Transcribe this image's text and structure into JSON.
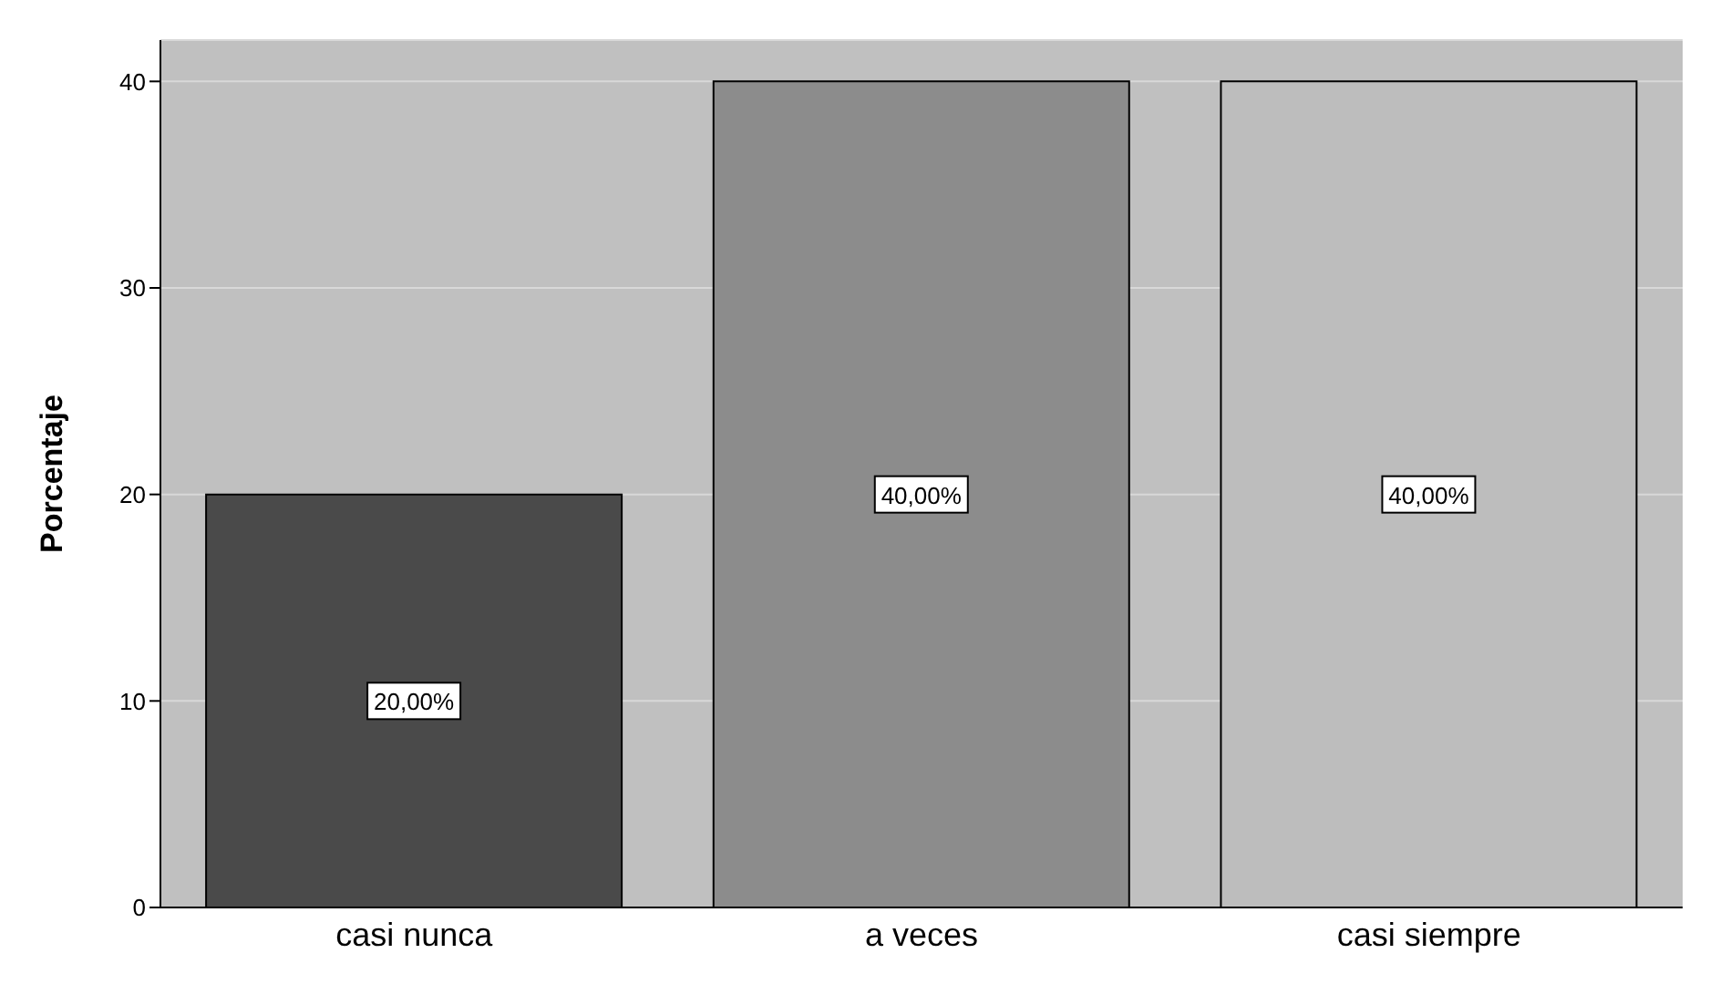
{
  "chart_data": {
    "type": "bar",
    "ylabel": "Porcentaje",
    "categories": [
      "casi nunca",
      "a veces",
      "casi siempre"
    ],
    "values": [
      20,
      40,
      40
    ],
    "colors": [
      "#4a4a4a",
      "#8c8c8c",
      "#bdbdbd"
    ],
    "value_labels": [
      "20,00%",
      "40,00%",
      "40,00%"
    ],
    "ylim": [
      0,
      42
    ],
    "yticks": [
      0,
      10,
      20,
      30,
      40
    ],
    "grid": "y"
  }
}
